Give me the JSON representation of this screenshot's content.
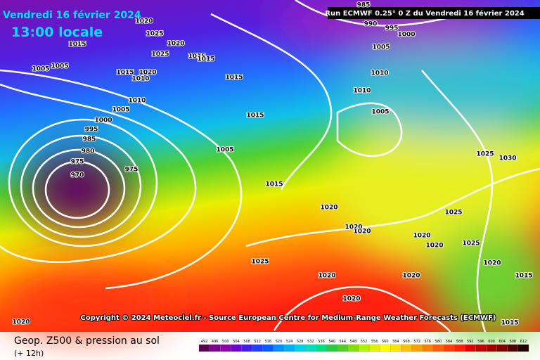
{
  "header": {
    "date": "Vendredi 16 février 2024",
    "time": "13:00 locale",
    "run": "Run ECMWF 0.25° 0 Z du Vendredi 16 février 2024"
  },
  "copyright": "Copyright © 2024 Meteociel.fr - Source European Centre for Medium-Range Weather Forecasts (ECMWF)",
  "isobar_labels": [
    1020,
    1025,
    1015,
    1020,
    1025,
    1015,
    1015,
    1005,
    1005,
    1015,
    1020,
    1010,
    1015,
    1010,
    1005,
    1000,
    995,
    985,
    980,
    975,
    970,
    975,
    1015,
    1005,
    1015,
    1020,
    1020,
    1020,
    1025,
    1020,
    1020,
    1020,
    1020,
    1020,
    1020,
    1025,
    1025,
    1025,
    1030,
    1020,
    1015,
    1015,
    1005,
    1010,
    1010,
    1005,
    985,
    990,
    995,
    1000
  ],
  "footer": {
    "title": "Geop. Z500 & pression au sol",
    "step": "(+ 12h)"
  },
  "legend": {
    "labels": [
      492,
      496,
      500,
      504,
      508,
      512,
      516,
      520,
      524,
      528,
      532,
      536,
      540,
      544,
      548,
      552,
      556,
      560,
      564,
      568,
      572,
      576,
      580,
      584,
      588,
      592,
      596,
      600,
      604,
      608,
      612
    ],
    "colors": [
      "#5a0050",
      "#7a0090",
      "#9000b0",
      "#7000d0",
      "#4020e0",
      "#2040ff",
      "#0060ff",
      "#0090ff",
      "#00b0ff",
      "#00d0f0",
      "#00e0c0",
      "#00e080",
      "#20d040",
      "#50d020",
      "#80e000",
      "#b0f000",
      "#e0f000",
      "#ffff00",
      "#ffe000",
      "#ffc000",
      "#ffa000",
      "#ff8000",
      "#ff6000",
      "#ff4000",
      "#ff2000",
      "#e00000",
      "#c00000",
      "#a00000",
      "#800000",
      "#500000",
      "#200000"
    ]
  }
}
